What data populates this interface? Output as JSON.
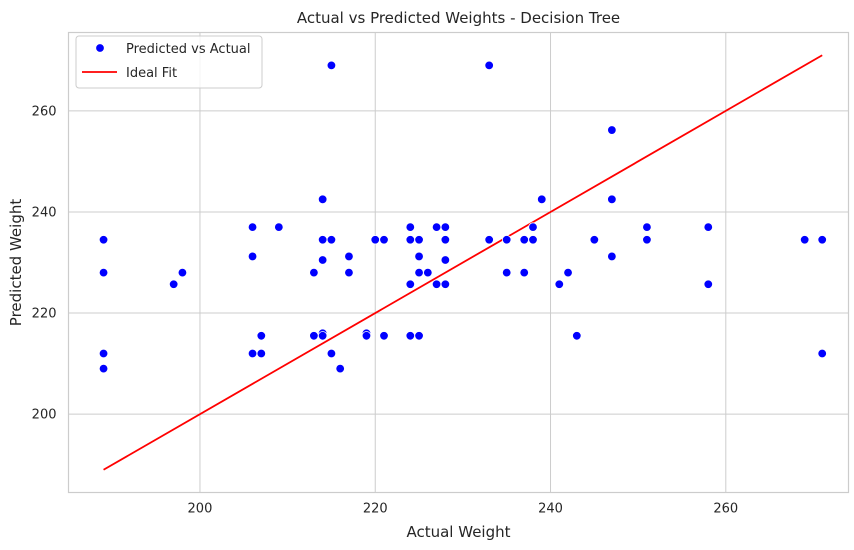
{
  "chart_data": {
    "type": "scatter",
    "title": "Actual vs Predicted Weights - Decision Tree",
    "xlabel": "Actual Weight",
    "ylabel": "Predicted Weight",
    "xlim": [
      185,
      274
    ],
    "ylim": [
      184.5,
      275.5
    ],
    "xticks": [
      200,
      220,
      240,
      260
    ],
    "yticks": [
      200,
      220,
      240,
      260
    ],
    "grid": true,
    "legend_position": "top-left",
    "colors": {
      "scatter": "#0000ff",
      "line": "#ff0000",
      "grid": "#cccccc",
      "frame": "#cccccc"
    },
    "series": [
      {
        "name": "Predicted vs Actual",
        "kind": "scatter",
        "points": [
          [
            189,
            234.5
          ],
          [
            189,
            228
          ],
          [
            189,
            212
          ],
          [
            189,
            209
          ],
          [
            197,
            225.7
          ],
          [
            198,
            228
          ],
          [
            206,
            237
          ],
          [
            206,
            231.2
          ],
          [
            206,
            212
          ],
          [
            207,
            215.5
          ],
          [
            207,
            212
          ],
          [
            209,
            237
          ],
          [
            213,
            228
          ],
          [
            213,
            215.5
          ],
          [
            214,
            242.5
          ],
          [
            214,
            234.5
          ],
          [
            214,
            230.5
          ],
          [
            214,
            216
          ],
          [
            214,
            215.5
          ],
          [
            215,
            269
          ],
          [
            215,
            234.5
          ],
          [
            215,
            212
          ],
          [
            216,
            209
          ],
          [
            217,
            231.2
          ],
          [
            217,
            228
          ],
          [
            219,
            216
          ],
          [
            219,
            215.5
          ],
          [
            220,
            234.5
          ],
          [
            221,
            234.5
          ],
          [
            221,
            215.5
          ],
          [
            224,
            237
          ],
          [
            224,
            234.5
          ],
          [
            224,
            225.7
          ],
          [
            224,
            215.5
          ],
          [
            225,
            234.5
          ],
          [
            225,
            231.2
          ],
          [
            225,
            228
          ],
          [
            225,
            215.5
          ],
          [
            226,
            228
          ],
          [
            227,
            237
          ],
          [
            227,
            225.7
          ],
          [
            228,
            237
          ],
          [
            228,
            234.5
          ],
          [
            228,
            230.5
          ],
          [
            228,
            225.7
          ],
          [
            233,
            269
          ],
          [
            233,
            234.5
          ],
          [
            235,
            234.5
          ],
          [
            235,
            228
          ],
          [
            237,
            234.5
          ],
          [
            237,
            228
          ],
          [
            238,
            237
          ],
          [
            238,
            234.5
          ],
          [
            239,
            242.5
          ],
          [
            241,
            225.7
          ],
          [
            242,
            228
          ],
          [
            243,
            215.5
          ],
          [
            245,
            234.5
          ],
          [
            247,
            256.2
          ],
          [
            247,
            242.5
          ],
          [
            247,
            231.2
          ],
          [
            251,
            237
          ],
          [
            251,
            234.5
          ],
          [
            258,
            237
          ],
          [
            258,
            225.7
          ],
          [
            269,
            234.5
          ],
          [
            271,
            234.5
          ],
          [
            271,
            212
          ]
        ]
      },
      {
        "name": "Ideal Fit",
        "kind": "line",
        "points": [
          [
            189,
            189
          ],
          [
            271,
            271
          ]
        ]
      }
    ]
  }
}
